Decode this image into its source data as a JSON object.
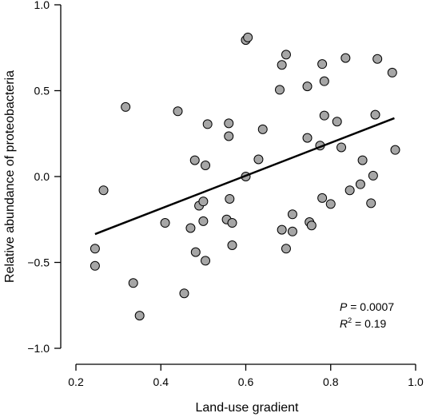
{
  "chart_data": {
    "type": "scatter",
    "title": "",
    "xlabel": "Land-use gradient",
    "ylabel": "Relative abundance of proteobacteria",
    "xlim": [
      0.2,
      1.0
    ],
    "ylim": [
      -1.0,
      1.0
    ],
    "xticks": [
      0.2,
      0.4,
      0.6,
      0.8,
      1.0
    ],
    "yticks": [
      -1.0,
      -0.5,
      0.0,
      0.5,
      1.0
    ],
    "xtick_labels": [
      "0.2",
      "0.4",
      "0.6",
      "0.8",
      "1.0"
    ],
    "ytick_labels": [
      "−1.0",
      "−0.5",
      "0.0",
      "0.5",
      "1.0"
    ],
    "point_fill": "#a6a6a6",
    "point_stroke": "#000000",
    "line_color": "#000000",
    "grid": false,
    "legend": "none",
    "points": [
      {
        "x": 0.245,
        "y": -0.42
      },
      {
        "x": 0.245,
        "y": -0.52
      },
      {
        "x": 0.265,
        "y": -0.08
      },
      {
        "x": 0.317,
        "y": 0.405
      },
      {
        "x": 0.335,
        "y": -0.62
      },
      {
        "x": 0.35,
        "y": -0.81
      },
      {
        "x": 0.41,
        "y": -0.27
      },
      {
        "x": 0.44,
        "y": 0.38
      },
      {
        "x": 0.455,
        "y": -0.68
      },
      {
        "x": 0.47,
        "y": -0.3
      },
      {
        "x": 0.48,
        "y": 0.095
      },
      {
        "x": 0.482,
        "y": -0.44
      },
      {
        "x": 0.49,
        "y": -0.17
      },
      {
        "x": 0.5,
        "y": -0.145
      },
      {
        "x": 0.5,
        "y": -0.26
      },
      {
        "x": 0.505,
        "y": 0.065
      },
      {
        "x": 0.505,
        "y": -0.49
      },
      {
        "x": 0.51,
        "y": 0.305
      },
      {
        "x": 0.555,
        "y": -0.25
      },
      {
        "x": 0.56,
        "y": 0.31
      },
      {
        "x": 0.56,
        "y": 0.235
      },
      {
        "x": 0.562,
        "y": -0.13
      },
      {
        "x": 0.568,
        "y": -0.27
      },
      {
        "x": 0.568,
        "y": -0.4
      },
      {
        "x": 0.6,
        "y": 0.795
      },
      {
        "x": 0.605,
        "y": 0.81
      },
      {
        "x": 0.6,
        "y": 0.0
      },
      {
        "x": 0.63,
        "y": 0.1
      },
      {
        "x": 0.64,
        "y": 0.275
      },
      {
        "x": 0.68,
        "y": 0.505
      },
      {
        "x": 0.685,
        "y": 0.65
      },
      {
        "x": 0.695,
        "y": 0.71
      },
      {
        "x": 0.685,
        "y": -0.31
      },
      {
        "x": 0.695,
        "y": -0.42
      },
      {
        "x": 0.71,
        "y": -0.22
      },
      {
        "x": 0.71,
        "y": -0.32
      },
      {
        "x": 0.745,
        "y": 0.525
      },
      {
        "x": 0.745,
        "y": 0.225
      },
      {
        "x": 0.75,
        "y": -0.265
      },
      {
        "x": 0.755,
        "y": -0.285
      },
      {
        "x": 0.775,
        "y": 0.18
      },
      {
        "x": 0.78,
        "y": 0.655
      },
      {
        "x": 0.785,
        "y": 0.555
      },
      {
        "x": 0.785,
        "y": 0.355
      },
      {
        "x": 0.78,
        "y": -0.125
      },
      {
        "x": 0.8,
        "y": -0.16
      },
      {
        "x": 0.815,
        "y": 0.32
      },
      {
        "x": 0.825,
        "y": 0.17
      },
      {
        "x": 0.835,
        "y": 0.69
      },
      {
        "x": 0.845,
        "y": -0.08
      },
      {
        "x": 0.87,
        "y": -0.045
      },
      {
        "x": 0.875,
        "y": 0.095
      },
      {
        "x": 0.895,
        "y": -0.155
      },
      {
        "x": 0.9,
        "y": 0.005
      },
      {
        "x": 0.905,
        "y": 0.36
      },
      {
        "x": 0.91,
        "y": 0.685
      },
      {
        "x": 0.945,
        "y": 0.605
      },
      {
        "x": 0.952,
        "y": 0.155
      }
    ],
    "regression_line": {
      "x": [
        0.245,
        0.95
      ],
      "y": [
        -0.335,
        0.34
      ]
    },
    "annotation": {
      "p_label": "P",
      "p_value": " = 0.0007",
      "r2_label": "R",
      "r2_sup": "2",
      "r2_value": " = 0.19"
    }
  }
}
